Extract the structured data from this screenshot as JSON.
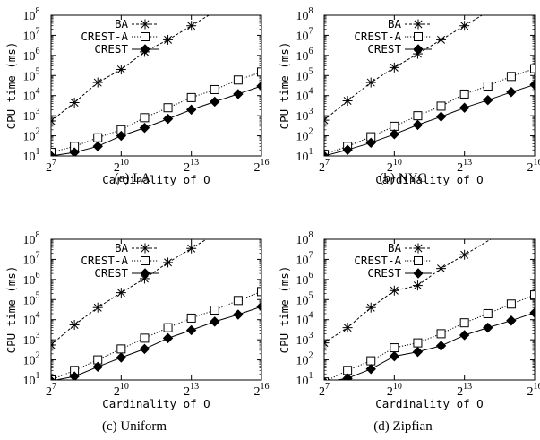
{
  "figure": {
    "panels": [
      {
        "caption": "(a) LA"
      },
      {
        "caption": "(b) NYC"
      },
      {
        "caption": "(c) Uniform"
      },
      {
        "caption": "(d) Zipfian"
      }
    ]
  },
  "chart_data": [
    {
      "type": "line",
      "caption": "(a) LA",
      "xlabel": "Cardinality of O",
      "ylabel": "CPU time (ms)",
      "xscale": "log2",
      "yscale": "log10",
      "xlim": [
        128,
        65536
      ],
      "ylim": [
        10,
        100000000
      ],
      "xticks": [
        128,
        1024,
        8192,
        65536
      ],
      "xtick_labels": [
        {
          "base": "2",
          "exp": "7"
        },
        {
          "base": "2",
          "exp": "10"
        },
        {
          "base": "2",
          "exp": "13"
        },
        {
          "base": "2",
          "exp": "16"
        }
      ],
      "yticks": [
        10,
        100,
        1000,
        10000,
        100000,
        1000000,
        10000000,
        100000000
      ],
      "ytick_labels": [
        {
          "base": "10",
          "exp": "1"
        },
        {
          "base": "10",
          "exp": "2"
        },
        {
          "base": "10",
          "exp": "3"
        },
        {
          "base": "10",
          "exp": "4"
        },
        {
          "base": "10",
          "exp": "5"
        },
        {
          "base": "10",
          "exp": "6"
        },
        {
          "base": "10",
          "exp": "7"
        },
        {
          "base": "10",
          "exp": "8"
        }
      ],
      "legend_position": "top-left",
      "x": [
        128,
        256,
        512,
        1024,
        2048,
        4096,
        8192,
        16384,
        32768,
        65536
      ],
      "series": [
        {
          "name": "BA",
          "marker": "asterisk",
          "line": "dashed",
          "values": [
            550,
            4500,
            45000,
            200000,
            1500000,
            6000000,
            30000000,
            null,
            null,
            null
          ]
        },
        {
          "name": "CREST-A",
          "marker": "square",
          "line": "dotted",
          "values": [
            15,
            30,
            80,
            200,
            800,
            2500,
            8000,
            20000,
            60000,
            150000
          ]
        },
        {
          "name": "CREST",
          "marker": "diamond",
          "line": "solid",
          "values": [
            10,
            15,
            30,
            100,
            250,
            700,
            2000,
            5000,
            12000,
            30000
          ]
        }
      ]
    },
    {
      "type": "line",
      "caption": "(b) NYC",
      "xlabel": "Cardinality of O",
      "ylabel": "CPU time (ms)",
      "xscale": "log2",
      "yscale": "log10",
      "xlim": [
        128,
        65536
      ],
      "ylim": [
        10,
        100000000
      ],
      "xticks": [
        128,
        1024,
        8192,
        65536
      ],
      "xtick_labels": [
        {
          "base": "2",
          "exp": "7"
        },
        {
          "base": "2",
          "exp": "10"
        },
        {
          "base": "2",
          "exp": "13"
        },
        {
          "base": "2",
          "exp": "16"
        }
      ],
      "yticks": [
        10,
        100,
        1000,
        10000,
        100000,
        1000000,
        10000000,
        100000000
      ],
      "ytick_labels": [
        {
          "base": "10",
          "exp": "1"
        },
        {
          "base": "10",
          "exp": "2"
        },
        {
          "base": "10",
          "exp": "3"
        },
        {
          "base": "10",
          "exp": "4"
        },
        {
          "base": "10",
          "exp": "5"
        },
        {
          "base": "10",
          "exp": "6"
        },
        {
          "base": "10",
          "exp": "7"
        },
        {
          "base": "10",
          "exp": "8"
        }
      ],
      "legend_position": "top-left",
      "x": [
        128,
        256,
        512,
        1024,
        2048,
        4096,
        8192,
        16384,
        32768,
        65536
      ],
      "series": [
        {
          "name": "BA",
          "marker": "asterisk",
          "line": "dashed",
          "values": [
            600,
            5500,
            45000,
            250000,
            1200000,
            6000000,
            30000000,
            null,
            null,
            null
          ]
        },
        {
          "name": "CREST-A",
          "marker": "square",
          "line": "dotted",
          "values": [
            12,
            30,
            90,
            300,
            1000,
            3000,
            12000,
            30000,
            90000,
            220000
          ]
        },
        {
          "name": "CREST",
          "marker": "diamond",
          "line": "solid",
          "values": [
            10,
            20,
            45,
            120,
            350,
            900,
            2500,
            6000,
            15000,
            35000
          ]
        }
      ]
    },
    {
      "type": "line",
      "caption": "(c) Uniform",
      "xlabel": "Cardinality of O",
      "ylabel": "CPU time (ms)",
      "xscale": "log2",
      "yscale": "log10",
      "xlim": [
        128,
        65536
      ],
      "ylim": [
        10,
        100000000
      ],
      "xticks": [
        128,
        1024,
        8192,
        65536
      ],
      "xtick_labels": [
        {
          "base": "2",
          "exp": "7"
        },
        {
          "base": "2",
          "exp": "10"
        },
        {
          "base": "2",
          "exp": "13"
        },
        {
          "base": "2",
          "exp": "16"
        }
      ],
      "yticks": [
        10,
        100,
        1000,
        10000,
        100000,
        1000000,
        10000000,
        100000000
      ],
      "ytick_labels": [
        {
          "base": "10",
          "exp": "1"
        },
        {
          "base": "10",
          "exp": "2"
        },
        {
          "base": "10",
          "exp": "3"
        },
        {
          "base": "10",
          "exp": "4"
        },
        {
          "base": "10",
          "exp": "5"
        },
        {
          "base": "10",
          "exp": "6"
        },
        {
          "base": "10",
          "exp": "7"
        },
        {
          "base": "10",
          "exp": "8"
        }
      ],
      "legend_position": "top-left",
      "x": [
        128,
        256,
        512,
        1024,
        2048,
        4096,
        8192,
        16384,
        32768,
        65536
      ],
      "series": [
        {
          "name": "BA",
          "marker": "asterisk",
          "line": "dashed",
          "values": [
            550,
            5500,
            40000,
            220000,
            1100000,
            7000000,
            35000000,
            null,
            null,
            null
          ]
        },
        {
          "name": "CREST-A",
          "marker": "square",
          "line": "dotted",
          "values": [
            10,
            30,
            100,
            350,
            1200,
            4000,
            12000,
            30000,
            90000,
            250000
          ]
        },
        {
          "name": "CREST",
          "marker": "diamond",
          "line": "solid",
          "values": [
            9,
            15,
            45,
            130,
            350,
            1200,
            3000,
            8000,
            18000,
            45000
          ]
        }
      ]
    },
    {
      "type": "line",
      "caption": "(d) Zipfian",
      "xlabel": "Cardinality of O",
      "ylabel": "CPU time (ms)",
      "xscale": "log2",
      "yscale": "log10",
      "xlim": [
        128,
        65536
      ],
      "ylim": [
        10,
        100000000
      ],
      "xticks": [
        128,
        1024,
        8192,
        65536
      ],
      "xtick_labels": [
        {
          "base": "2",
          "exp": "7"
        },
        {
          "base": "2",
          "exp": "10"
        },
        {
          "base": "2",
          "exp": "13"
        },
        {
          "base": "2",
          "exp": "16"
        }
      ],
      "yticks": [
        10,
        100,
        1000,
        10000,
        100000,
        1000000,
        10000000,
        100000000
      ],
      "ytick_labels": [
        {
          "base": "10",
          "exp": "1"
        },
        {
          "base": "10",
          "exp": "2"
        },
        {
          "base": "10",
          "exp": "3"
        },
        {
          "base": "10",
          "exp": "4"
        },
        {
          "base": "10",
          "exp": "5"
        },
        {
          "base": "10",
          "exp": "6"
        },
        {
          "base": "10",
          "exp": "7"
        },
        {
          "base": "10",
          "exp": "8"
        }
      ],
      "legend_position": "top-left",
      "x": [
        128,
        256,
        512,
        1024,
        2048,
        4096,
        8192,
        16384,
        32768,
        65536
      ],
      "series": [
        {
          "name": "BA",
          "marker": "asterisk",
          "line": "dashed",
          "values": [
            700,
            4000,
            40000,
            280000,
            500000,
            3500000,
            17000000,
            null,
            null,
            null
          ]
        },
        {
          "name": "CREST-A",
          "marker": "square",
          "line": "dotted",
          "values": [
            8,
            30,
            90,
            400,
            700,
            2000,
            7000,
            20000,
            60000,
            170000
          ]
        },
        {
          "name": "CREST",
          "marker": "diamond",
          "line": "solid",
          "values": [
            8,
            12,
            35,
            150,
            250,
            500,
            1700,
            4000,
            9000,
            22000
          ]
        }
      ]
    }
  ]
}
